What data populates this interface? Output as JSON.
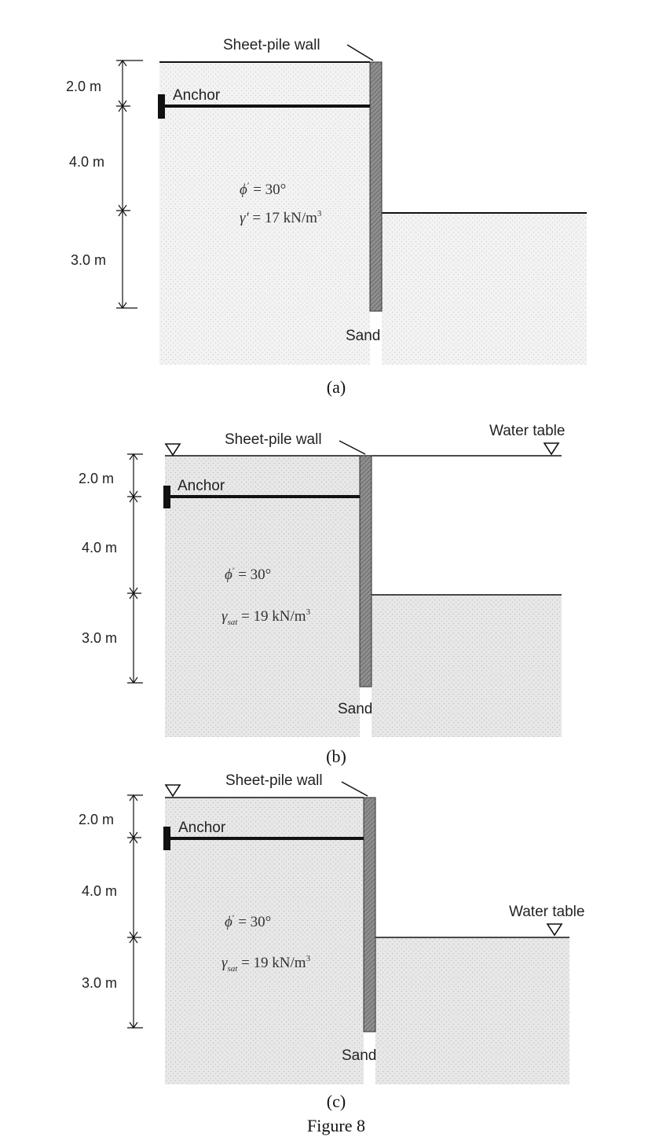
{
  "panels": [
    {
      "id": "a",
      "wall_label": "Sheet-pile wall",
      "anchor_label": "Anchor",
      "soil_label": "Sand",
      "caption": "(a)",
      "dims": [
        "2.0 m",
        "4.0 m",
        "3.0 m"
      ],
      "phi": {
        "sym": "ϕ",
        "prime": "′",
        "rest": " = 30°"
      },
      "gamma": {
        "sym": "γ′",
        "sub": "",
        "rest": " = 17 kN/m",
        "sup": "3"
      },
      "water_table_label": ""
    },
    {
      "id": "b",
      "wall_label": "Sheet-pile wall",
      "anchor_label": "Anchor",
      "soil_label": "Sand",
      "caption": "(b)",
      "dims": [
        "2.0 m",
        "4.0 m",
        "3.0 m"
      ],
      "phi": {
        "sym": "ϕ",
        "prime": "′",
        "rest": " = 30°"
      },
      "gamma": {
        "sym": "γ",
        "sub": "sat",
        "rest": " = 19 kN/m",
        "sup": "3"
      },
      "water_table_label": "Water table"
    },
    {
      "id": "c",
      "wall_label": "Sheet-pile wall",
      "anchor_label": "Anchor",
      "soil_label": "Sand",
      "caption": "(c)",
      "dims": [
        "2.0 m",
        "4.0 m",
        "3.0 m"
      ],
      "phi": {
        "sym": "ϕ",
        "prime": "′",
        "rest": " = 30°"
      },
      "gamma": {
        "sym": "γ",
        "sub": "sat",
        "rest": " = 19 kN/m",
        "sup": "3"
      },
      "water_table_label": "Water table"
    }
  ],
  "figure_caption": "Figure 8"
}
